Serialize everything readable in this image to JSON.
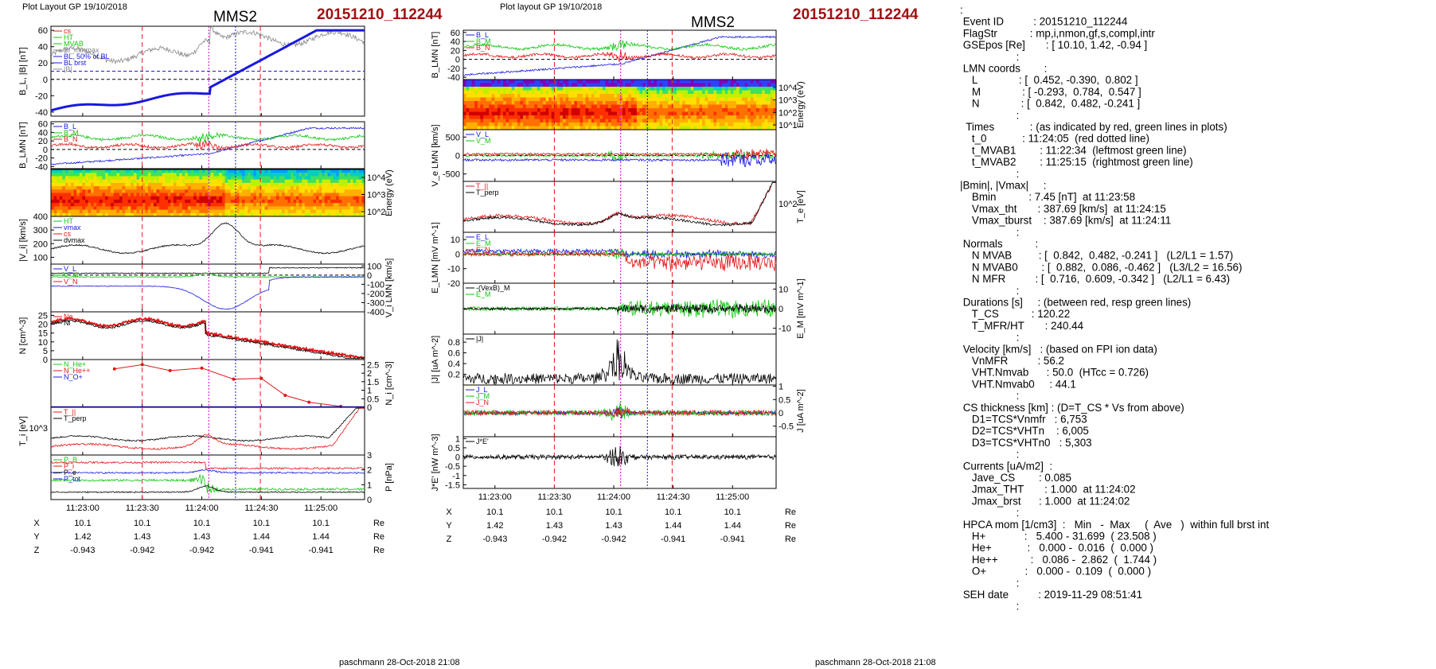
{
  "colors": {
    "red": "#e01818",
    "green": "#10c810",
    "blue": "#1818e0",
    "black": "#000000",
    "gray": "#888888",
    "magenta": "#d000d0",
    "event_red": "#a01010"
  },
  "left": {
    "header": "Plot Layout GP 19/10/2018",
    "spacecraft": "MMS2",
    "event": "20151210_112244",
    "footer": "paschmann 28-Oct-2018 21:08",
    "time_labels": [
      "11:23:00",
      "11:23:30",
      "11:24:00",
      "11:24:30",
      "11:25:00"
    ],
    "eph": {
      "rows": [
        "X",
        "Y",
        "Z"
      ],
      "unit": "Re",
      "values": [
        [
          "10.1",
          "10.1",
          "10.1",
          "10.1",
          "10.1"
        ],
        [
          "1.42",
          "1.43",
          "1.43",
          "1.44",
          "1.44"
        ],
        [
          "-0.943",
          "-0.942",
          "-0.942",
          "-0.941",
          "-0.941"
        ]
      ]
    }
  },
  "middle": {
    "header": "Plot layout GP 19/10/2018",
    "spacecraft": "MMS2",
    "event": "20151210_112244",
    "footer": "paschmann 28-Oct-2018 21:08",
    "time_labels": [
      "11:23:00",
      "11:23:30",
      "11:24:00",
      "11:24:30",
      "11:25:00"
    ],
    "eph": {
      "rows": [
        "X",
        "Y",
        "Z"
      ],
      "unit": "Re",
      "values": [
        [
          "10.1",
          "10.1",
          "10.1",
          "10.1",
          "10.1"
        ],
        [
          "1.42",
          "1.43",
          "1.43",
          "1.44",
          "1.44"
        ],
        [
          "-0.943",
          "-0.942",
          "-0.942",
          "-0.941",
          "-0.941"
        ]
      ]
    }
  },
  "chart_data": [
    {
      "id": "L1",
      "type": "line",
      "ylabel": "B_L, |B| [nT]",
      "ylim": [
        -45,
        65
      ],
      "yticks": [
        60,
        40,
        20,
        0,
        -20,
        -40
      ],
      "legend": [
        "cs",
        "HT",
        "MVAB",
        "Bl_minmax",
        "BL, 50% of BL",
        "BL brst",
        "|B|"
      ]
    },
    {
      "id": "L2",
      "type": "line",
      "ylabel": "B_LMN [nT]",
      "ylim": [
        -45,
        65
      ],
      "yticks": [
        60,
        40,
        20,
        0,
        -20,
        -40
      ],
      "legend": [
        "B_L",
        "B_M",
        "B_N"
      ]
    },
    {
      "id": "L3",
      "type": "heatmap",
      "ylabel": "Energy (eV)",
      "yticks": [
        "10^4",
        "10^3",
        "10^2"
      ]
    },
    {
      "id": "L4",
      "type": "line",
      "ylabel": "|V_i| [km/s]",
      "ylim": [
        50,
        400
      ],
      "yticks": [
        400,
        300,
        200,
        100
      ],
      "legend": [
        "HT",
        "vmax",
        "cs",
        "dvmax"
      ]
    },
    {
      "id": "L5",
      "type": "line",
      "ylabel": "V_i LMN [km/s]",
      "ylim": [
        -400,
        120
      ],
      "yticks": [
        100,
        0,
        -100,
        -200,
        -300,
        -400
      ],
      "legend": [
        "V_L",
        "V_M",
        "V_N"
      ]
    },
    {
      "id": "L6",
      "type": "line",
      "ylabel": "N [cm^-3]",
      "ylim": [
        0,
        27
      ],
      "yticks": [
        25,
        20,
        15,
        10,
        5,
        0
      ],
      "legend": [
        "Ne",
        "Ni"
      ]
    },
    {
      "id": "L7",
      "type": "line",
      "ylabel": "N_i [cm^-3]",
      "ylim": [
        0,
        2.8
      ],
      "yticks": [
        2.5,
        2.0,
        1.5,
        1.0,
        0.5,
        0.0
      ],
      "legend": [
        "N_He+",
        "N_He++",
        "N_O+"
      ]
    },
    {
      "id": "L8",
      "type": "line",
      "ylabel": "T_i [eV]",
      "yticks": [
        "10^3"
      ],
      "legend": [
        "T_||",
        "T_perp"
      ]
    },
    {
      "id": "L9",
      "type": "line",
      "ylabel": "P [nPa]",
      "ylim": [
        0,
        3
      ],
      "yticks": [
        3,
        2,
        1,
        0
      ],
      "legend": [
        "P_B",
        "P_i",
        "P_e",
        "P_tot"
      ]
    },
    {
      "id": "M1",
      "type": "line",
      "ylabel": "B_LMN [nT]",
      "ylim": [
        -45,
        65
      ],
      "yticks": [
        60,
        40,
        20,
        0,
        -20,
        -40
      ],
      "legend": [
        "B_L",
        "B_M",
        "B_N"
      ]
    },
    {
      "id": "M2",
      "type": "heatmap",
      "ylabel": "Energy (eV)",
      "yticks": [
        "10^4",
        "10^3",
        "10^2",
        "10^1"
      ]
    },
    {
      "id": "M3",
      "type": "line",
      "ylabel": "V_e LMN [km/s]",
      "ylim": [
        -700,
        700
      ],
      "yticks": [
        500,
        0,
        -500
      ],
      "legend": [
        "V_L",
        "V_M"
      ]
    },
    {
      "id": "M4",
      "type": "line",
      "ylabel": "T_e [eV]",
      "yticks": [
        "10^2"
      ],
      "legend": [
        "T_||",
        "T_perp"
      ]
    },
    {
      "id": "M5",
      "type": "line",
      "ylabel": "E_LMN [mV m^-1]",
      "ylim": [
        -20,
        15
      ],
      "yticks": [
        10,
        0,
        -10,
        -20
      ],
      "legend": [
        "E_L",
        "E_M",
        "E_N"
      ]
    },
    {
      "id": "M6",
      "type": "line",
      "ylabel": "E_M [mV m^-1]",
      "ylim": [
        -13,
        13
      ],
      "yticks": [
        10,
        0,
        -10
      ],
      "legend": [
        "-(VexB)_M",
        "E_M"
      ]
    },
    {
      "id": "M7",
      "type": "line",
      "ylabel": "|J| [uA m^-2]",
      "ylim": [
        0,
        0.95
      ],
      "yticks": [
        0.8,
        0.6,
        0.4,
        0.2
      ],
      "legend": [
        "|J|"
      ]
    },
    {
      "id": "M8",
      "type": "line",
      "ylabel": "J [uA m^-2]",
      "ylim": [
        -0.9,
        1.05
      ],
      "yticks": [
        1.0,
        0.5,
        0.0,
        -0.5
      ],
      "legend": [
        "J_L",
        "J_M",
        "J_N"
      ]
    },
    {
      "id": "M9",
      "type": "line",
      "ylabel": "J*E' [nW m^-3]",
      "ylim": [
        -1.7,
        1.1
      ],
      "yticks": [
        1.0,
        0.5,
        0.0,
        -0.5,
        -1.0,
        -1.5
      ],
      "legend": [
        "J*E'"
      ]
    }
  ],
  "info": {
    "lines": [
      ":",
      " Event ID          : 20151210_112244",
      " FlagStr           : mp,i,nmon,gf,s,compl,intr",
      " GSEpos [Re]       : [ 10.10, 1.42, -0.94 ]",
      "                   :",
      " LMN coords        :",
      "    L              : [  0.452, -0.390,  0.802 ]",
      "    M              : [ -0.293,  0.784,  0.547 ]",
      "    N              : [  0.842,  0.482, -0.241 ]",
      "                   :",
      "  Times            : (as indicated by red, green lines in plots)",
      "    t_0            : 11:24:05  (red dotted line)",
      "    t_MVAB1        : 11:22:34  (leftmost green line)",
      "    t_MVAB2        : 11:25:15  (rightmost green line)",
      "                   :",
      "|Bmin|, |Vmax|     :",
      "    Bmin           : 7.45 [nT]  at 11:23:58",
      "    Vmax_tht       : 387.69 [km/s]  at 11:24:15",
      "    Vmax_tburst    : 387.69 [km/s]  at 11:24:11",
      "                   :",
      " Normals           :",
      "    N MVAB         : [  0.842,  0.482, -0.241 ]   (L2/L1 = 1.57)",
      "    N MVAB0        : [  0.882,  0.086, -0.462 ]   (L3/L2 = 16.56)",
      "    N MFR          : [  0.716,  0.609, -0.342 ]   (L2/L1 = 6.43)",
      "                   :",
      " Durations [s]     : (between red, resp green lines)",
      "    T_CS           : 120.22",
      "    T_MFR/HT       : 240.44",
      "                   :",
      " Velocity [km/s]   : (based on FPI ion data)",
      "    VnMFR          : 56.2",
      "    VHT.Nmvab      : 50.0  (HTcc = 0.726)",
      "    VHT.Nmvab0     : 44.1",
      "                   :",
      " CS thickness [km] : (D=T_CS * Vs from above)",
      "    D1=TCS*Vnmfr   : 6,753",
      "    D2=TCS*VHTn    : 6,005",
      "    D3=TCS*VHTn0   : 5,303",
      "                   :",
      " Currents [uA/m2]  :",
      "    Jave_CS        : 0.085",
      "    Jmax_THT       : 1.000  at 11:24:02",
      "    Jmax_brst      : 1.000  at 11:24:02",
      "                   :",
      " HPCA mom [1/cm3]  :   Min   -  Max     (  Ave   )  within full brst int",
      "    H+             :   5.400 - 31.699  ( 23.508 )",
      "    He+            :   0.000 -  0.016  (  0.000 )",
      "    He++           :   0.086 -  2.862  (  1.744 )",
      "    O+             :   0.000 -  0.109  (  0.000 )",
      "                   :",
      " SEH date          : 2019-11-29 08:51:41",
      "                   :"
    ]
  }
}
